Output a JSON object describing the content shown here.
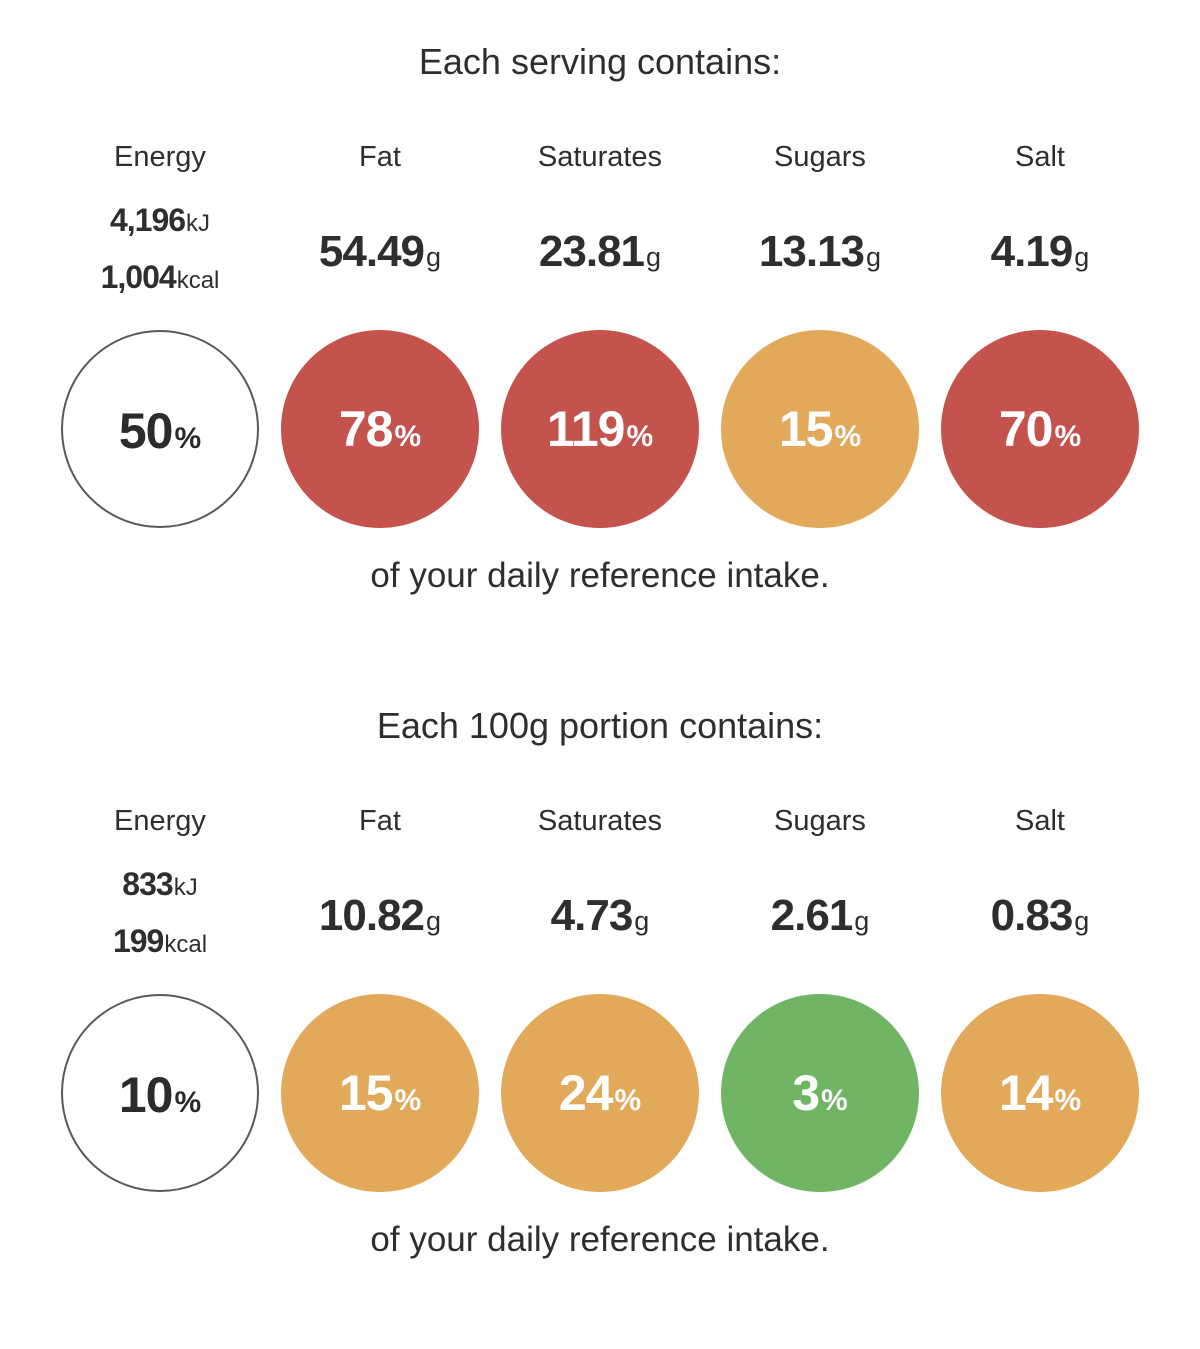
{
  "labels": {
    "percent_suffix": "%"
  },
  "colors": {
    "high": "#c4534e",
    "medium": "#e2a95b",
    "low": "#6fb563",
    "none": "#ffffff",
    "energy_circle_border": "#58595b",
    "text": "#2e2e2e"
  },
  "sections": [
    {
      "title": "Each serving contains:",
      "footer": "of your daily reference intake.",
      "columns": [
        {
          "label": "Energy",
          "energy": {
            "kj": "4,196",
            "kj_unit": "kJ",
            "kcal": "1,004",
            "kcal_unit": "kcal"
          },
          "percent": "50",
          "level": "none"
        },
        {
          "label": "Fat",
          "amount": "54.49",
          "unit": "g",
          "percent": "78",
          "level": "high"
        },
        {
          "label": "Saturates",
          "amount": "23.81",
          "unit": "g",
          "percent": "119",
          "level": "high"
        },
        {
          "label": "Sugars",
          "amount": "13.13",
          "unit": "g",
          "percent": "15",
          "level": "medium"
        },
        {
          "label": "Salt",
          "amount": "4.19",
          "unit": "g",
          "percent": "70",
          "level": "high"
        }
      ]
    },
    {
      "title": "Each 100g portion contains:",
      "footer": "of your daily reference intake.",
      "columns": [
        {
          "label": "Energy",
          "energy": {
            "kj": "833",
            "kj_unit": "kJ",
            "kcal": "199",
            "kcal_unit": "kcal"
          },
          "percent": "10",
          "level": "none"
        },
        {
          "label": "Fat",
          "amount": "10.82",
          "unit": "g",
          "percent": "15",
          "level": "medium"
        },
        {
          "label": "Saturates",
          "amount": "4.73",
          "unit": "g",
          "percent": "24",
          "level": "medium"
        },
        {
          "label": "Sugars",
          "amount": "2.61",
          "unit": "g",
          "percent": "3",
          "level": "low"
        },
        {
          "label": "Salt",
          "amount": "0.83",
          "unit": "g",
          "percent": "14",
          "level": "medium"
        }
      ]
    }
  ],
  "chart_data": [
    {
      "type": "table",
      "title": "Each serving contains:",
      "categories": [
        "Energy",
        "Fat",
        "Saturates",
        "Sugars",
        "Salt"
      ],
      "amounts": [
        "4,196 kJ / 1,004 kcal",
        "54.49 g",
        "23.81 g",
        "13.13 g",
        "4.19 g"
      ],
      "percent_of_daily_reference_intake": [
        50,
        78,
        119,
        15,
        70
      ],
      "traffic_light": [
        "none",
        "red",
        "red",
        "amber",
        "red"
      ],
      "footer": "of your daily reference intake."
    },
    {
      "type": "table",
      "title": "Each 100g portion contains:",
      "categories": [
        "Energy",
        "Fat",
        "Saturates",
        "Sugars",
        "Salt"
      ],
      "amounts": [
        "833 kJ / 199 kcal",
        "10.82 g",
        "4.73 g",
        "2.61 g",
        "0.83 g"
      ],
      "percent_of_daily_reference_intake": [
        10,
        15,
        24,
        3,
        14
      ],
      "traffic_light": [
        "none",
        "amber",
        "amber",
        "green",
        "amber"
      ],
      "footer": "of your daily reference intake."
    }
  ]
}
